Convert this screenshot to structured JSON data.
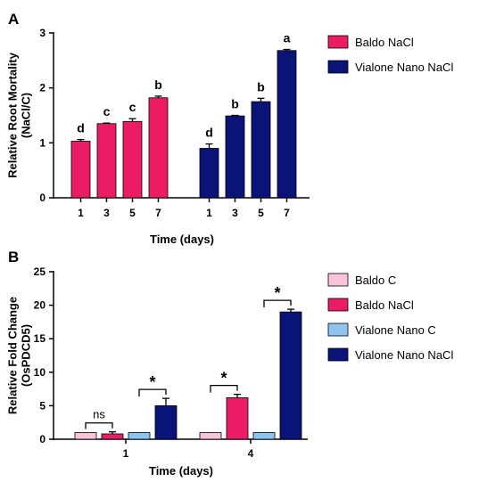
{
  "colors": {
    "baldo_c": "#f7c4dc",
    "baldo_nacl": "#ec1c64",
    "vialone_c": "#8ec5f0",
    "vialone_nacl": "#0a1378"
  },
  "chart_data": [
    {
      "panel": "A",
      "type": "bar",
      "xlabel": "Time (days)",
      "ylabel": "Relative Root Mortality\n(NaCl/C)",
      "ylim": [
        0,
        3
      ],
      "yticks": [
        0,
        1,
        2,
        3
      ],
      "legend_position": "top-right",
      "series": [
        {
          "name": "Baldo NaCl",
          "color": "#ec1c64",
          "x": [
            "1",
            "3",
            "5",
            "7"
          ],
          "values": [
            1.03,
            1.35,
            1.39,
            1.82
          ],
          "errors": [
            0.03,
            0.01,
            0.05,
            0.03
          ],
          "letters": [
            "d",
            "c",
            "c",
            "b"
          ]
        },
        {
          "name": "Vialone Nano NaCl",
          "color": "#0a1378",
          "x": [
            "1",
            "3",
            "5",
            "7"
          ],
          "values": [
            0.9,
            1.49,
            1.75,
            2.68
          ],
          "errors": [
            0.08,
            0.01,
            0.06,
            0.02
          ],
          "letters": [
            "d",
            "b",
            "b",
            "a"
          ]
        }
      ]
    },
    {
      "panel": "B",
      "type": "bar",
      "xlabel": "Time (days)",
      "ylabel": "Relative Fold Change\n(OsPDCD5)",
      "ylim": [
        0,
        25
      ],
      "yticks": [
        0,
        5,
        10,
        15,
        20,
        25
      ],
      "categories": [
        "1",
        "4"
      ],
      "legend_position": "top-right",
      "series": [
        {
          "name": "Baldo C",
          "color": "#f7c4dc",
          "values": [
            1.0,
            1.0
          ],
          "errors": [
            0.0,
            0.0
          ]
        },
        {
          "name": "Baldo NaCl",
          "color": "#ec1c64",
          "values": [
            0.8,
            6.2
          ],
          "errors": [
            0.3,
            0.5
          ]
        },
        {
          "name": "Vialone Nano C",
          "color": "#8ec5f0",
          "values": [
            1.0,
            1.0
          ],
          "errors": [
            0.0,
            0.0
          ]
        },
        {
          "name": "Vialone Nano NaCl",
          "color": "#0a1378",
          "values": [
            5.0,
            19.0
          ],
          "errors": [
            1.1,
            0.4
          ]
        }
      ],
      "significance": [
        {
          "category": "1",
          "from": 0,
          "to": 1,
          "label": "ns"
        },
        {
          "category": "1",
          "from": 2,
          "to": 3,
          "label": "*"
        },
        {
          "category": "4",
          "from": 0,
          "to": 1,
          "label": "*"
        },
        {
          "category": "4",
          "from": 2,
          "to": 3,
          "label": "*"
        }
      ]
    }
  ]
}
